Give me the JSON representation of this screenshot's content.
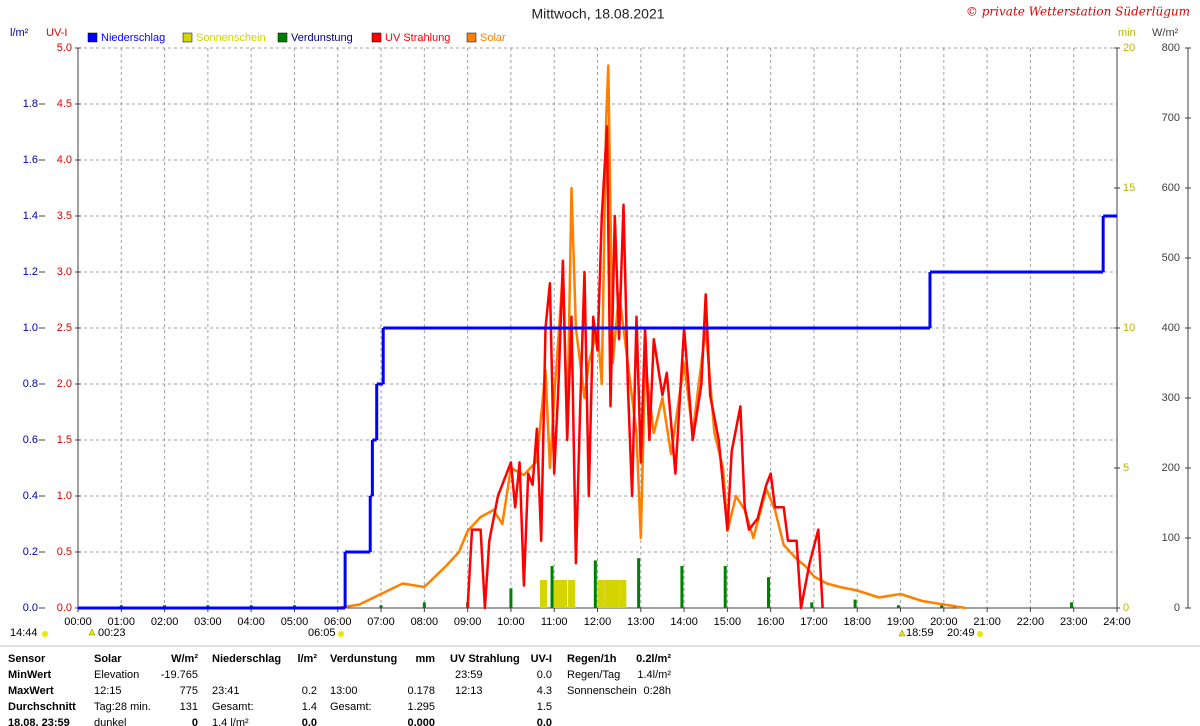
{
  "chart_data": {
    "type": "line",
    "title": "Mittwoch, 18.08.2021",
    "copyright": "© private Wetterstation Süderlügum",
    "y_label": "l/m²",
    "y2_label": "UV-I",
    "y3_label": "min",
    "y4_label": "W/m²",
    "grid": true,
    "xlim": [
      0,
      24
    ],
    "xticks": [
      {
        "value": 0,
        "label": "00:00"
      },
      {
        "value": 1,
        "label": "01:00"
      },
      {
        "value": 2,
        "label": "02:00"
      },
      {
        "value": 3,
        "label": "03:00"
      },
      {
        "value": 4,
        "label": "04:00"
      },
      {
        "value": 5,
        "label": "05:00"
      },
      {
        "value": 6,
        "label": "06:00"
      },
      {
        "value": 7,
        "label": "07:00"
      },
      {
        "value": 8,
        "label": "08:00"
      },
      {
        "value": 9,
        "label": "09:00"
      },
      {
        "value": 10,
        "label": "10:00"
      },
      {
        "value": 11,
        "label": "11:00"
      },
      {
        "value": 12,
        "label": "12:00"
      },
      {
        "value": 13,
        "label": "13:00"
      },
      {
        "value": 14,
        "label": "14:00"
      },
      {
        "value": 15,
        "label": "15:00"
      },
      {
        "value": 16,
        "label": "16:00"
      },
      {
        "value": 17,
        "label": "17:00"
      },
      {
        "value": 18,
        "label": "18:00"
      },
      {
        "value": 19,
        "label": "19:00"
      },
      {
        "value": 20,
        "label": "20:00"
      },
      {
        "value": 21,
        "label": "21:00"
      },
      {
        "value": 22,
        "label": "22:00"
      },
      {
        "value": 23,
        "label": "23:00"
      },
      {
        "value": 24,
        "label": "24:00"
      }
    ],
    "ylim": [
      0,
      2
    ],
    "yticks": [
      {
        "value": 0,
        "label": "0.0"
      },
      0.2,
      0.4,
      0.6,
      0.8,
      {
        "value": 1,
        "label": "1.0"
      },
      1.2,
      1.4,
      1.6,
      1.8
    ],
    "y2lim": [
      0,
      5
    ],
    "y2ticks": [
      {
        "value": 0,
        "label": "0.0"
      },
      0.5,
      {
        "value": 1,
        "label": "1.0"
      },
      1.5,
      {
        "value": 2,
        "label": "2.0"
      },
      2.5,
      {
        "value": 3,
        "label": "3.0"
      },
      3.5,
      {
        "value": 4,
        "label": "4.0"
      },
      4.5,
      {
        "value": 5,
        "label": "5.0"
      }
    ],
    "y3lim": [
      0,
      20
    ],
    "y3ticks": [
      0,
      5,
      10,
      15,
      20
    ],
    "y4lim": [
      0,
      800
    ],
    "y4ticks": [
      0,
      100,
      200,
      300,
      400,
      500,
      600,
      700,
      800
    ],
    "series": [
      {
        "name": "Niederschlag",
        "color": "#0000ff",
        "type": "step",
        "axis": "y",
        "x": [
          0,
          6.17,
          6.75,
          6.8,
          6.9,
          7.05,
          19.68,
          23.68
        ],
        "values": [
          0,
          0.2,
          0.4,
          0.6,
          0.8,
          1.0,
          1.2,
          1.4
        ]
      },
      {
        "name": "Sonnenschein",
        "color": "#d4d400",
        "type": "bar",
        "axis": "y3",
        "x": [
          10.67,
          10.97,
          11.13,
          11.32,
          12.0,
          12.17,
          12.33,
          12.5
        ],
        "values": [
          1,
          1,
          1,
          1,
          1,
          1,
          1,
          1
        ]
      },
      {
        "name": "Verdunstung",
        "color": "#008000",
        "type": "spike",
        "axis": "y",
        "x": [
          1,
          2,
          3,
          4,
          5,
          6,
          7,
          8,
          9,
          10,
          10.95,
          11.95,
          12.95,
          13.95,
          14.95,
          15.95,
          16.95,
          17.95,
          18.95,
          19.95,
          22.95
        ],
        "values": [
          0.01,
          0.01,
          0.01,
          0.01,
          0.01,
          0.005,
          0.01,
          0.02,
          0.02,
          0.07,
          0.15,
          0.17,
          0.178,
          0.15,
          0.15,
          0.11,
          0.02,
          0.03,
          0.01,
          0.01,
          0.02
        ]
      },
      {
        "name": "UV Strahlung",
        "color": "#ff0000",
        "type": "line",
        "axis": "y2",
        "x": [
          9.0,
          9.1,
          9.3,
          9.4,
          9.5,
          9.7,
          9.9,
          10.0,
          10.1,
          10.2,
          10.3,
          10.4,
          10.5,
          10.6,
          10.7,
          10.8,
          10.9,
          11.0,
          11.1,
          11.2,
          11.3,
          11.4,
          11.5,
          11.6,
          11.7,
          11.8,
          11.9,
          12.0,
          12.1,
          12.22,
          12.3,
          12.4,
          12.5,
          12.6,
          12.7,
          12.8,
          12.9,
          13.0,
          13.1,
          13.2,
          13.3,
          13.5,
          13.6,
          13.8,
          14.0,
          14.2,
          14.4,
          14.5,
          14.6,
          14.8,
          15.0,
          15.1,
          15.3,
          15.4,
          15.5,
          15.7,
          15.9,
          16.0,
          16.1,
          16.3,
          16.4,
          16.6,
          16.7,
          16.9,
          17.1,
          17.2
        ],
        "values": [
          0.0,
          0.7,
          0.7,
          0.0,
          0.6,
          1.0,
          1.2,
          1.3,
          0.9,
          1.3,
          0.2,
          1.2,
          1.1,
          1.6,
          0.6,
          2.5,
          2.9,
          1.2,
          2.0,
          3.1,
          1.5,
          2.6,
          0.4,
          1.8,
          3.0,
          1.0,
          2.6,
          2.3,
          3.5,
          4.3,
          1.8,
          3.5,
          2.4,
          3.6,
          2.0,
          1.0,
          2.6,
          1.3,
          2.5,
          1.5,
          2.4,
          1.9,
          2.1,
          1.2,
          2.5,
          1.5,
          2.0,
          2.8,
          1.9,
          1.5,
          0.7,
          1.4,
          1.8,
          0.9,
          0.7,
          0.8,
          1.1,
          1.2,
          0.9,
          0.9,
          0.6,
          0.6,
          0.0,
          0.4,
          0.7,
          0.0
        ]
      },
      {
        "name": "Solar",
        "color": "#ff8000",
        "type": "line",
        "axis": "y4",
        "x": [
          6.0,
          6.5,
          7.0,
          7.5,
          8.0,
          8.5,
          8.8,
          9.0,
          9.3,
          9.6,
          9.8,
          10.0,
          10.3,
          10.6,
          10.8,
          10.9,
          11.0,
          11.2,
          11.3,
          11.4,
          11.5,
          11.7,
          11.8,
          12.0,
          12.1,
          12.2,
          12.25,
          12.35,
          12.5,
          12.7,
          12.9,
          13.0,
          13.1,
          13.3,
          13.5,
          13.7,
          14.0,
          14.2,
          14.5,
          14.7,
          14.9,
          15.0,
          15.2,
          15.4,
          15.6,
          15.9,
          16.1,
          16.3,
          16.6,
          16.8,
          17.0,
          17.3,
          17.6,
          18.0,
          18.5,
          19.0,
          19.5,
          20.0,
          20.5
        ],
        "values": [
          0,
          5,
          20,
          35,
          30,
          60,
          80,
          110,
          130,
          140,
          120,
          200,
          190,
          210,
          340,
          200,
          300,
          480,
          250,
          600,
          400,
          300,
          350,
          400,
          320,
          700,
          775,
          350,
          450,
          350,
          250,
          100,
          350,
          250,
          300,
          220,
          350,
          250,
          400,
          250,
          200,
          110,
          160,
          140,
          100,
          170,
          140,
          90,
          70,
          60,
          45,
          35,
          30,
          25,
          15,
          20,
          10,
          5,
          0
        ]
      }
    ],
    "annotations": [
      "14:44",
      "00:23",
      "06:05",
      "18:59",
      "20:49"
    ]
  },
  "panel": {
    "rows": [
      [
        "Sensor",
        "Solar",
        "W/m²",
        "Niederschlag",
        "l/m²",
        "Verdunstung",
        "mm",
        "UV Strahlung",
        "UV-I",
        "Regen/1h",
        "0.2l/m²"
      ],
      [
        "MinWert",
        "Elevation",
        "-19.765",
        null,
        null,
        null,
        null,
        "23:59",
        "0.0",
        "Regen/Tag",
        "1.4l/m²"
      ],
      [
        "MaxWert",
        "12:15",
        "775",
        "23:41",
        "0.2",
        "13:00",
        "0.178",
        "12:13",
        "4.3",
        "Sonnenschein",
        "0:28h"
      ],
      [
        "Durchschnitt",
        "Tag:28 min.",
        "131",
        "Gesamt:",
        "1.4",
        "Gesamt:",
        "1.295",
        null,
        "1.5",
        null,
        null
      ],
      [
        "18.08. 23:59",
        "dunkel",
        "0",
        "1.4 l/m²",
        "0.0",
        null,
        "0.000",
        null,
        "0.0",
        null,
        null
      ]
    ]
  }
}
